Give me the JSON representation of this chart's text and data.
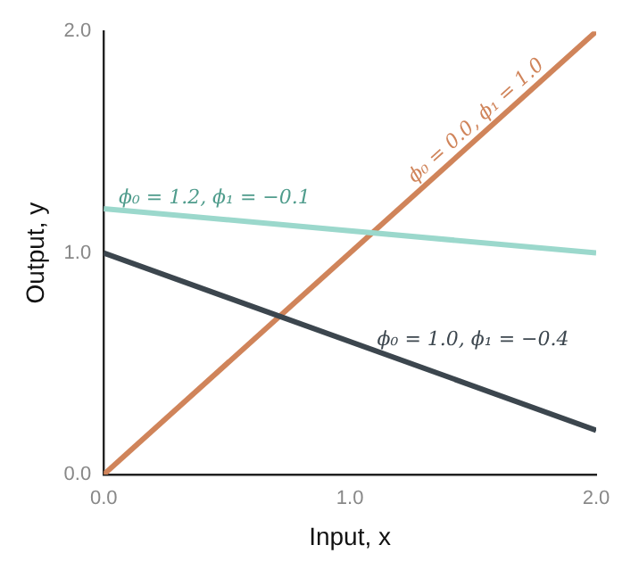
{
  "chart_data": {
    "type": "line",
    "xlabel": "Input, x",
    "ylabel": "Output, y",
    "xlim": [
      0,
      2
    ],
    "ylim": [
      0,
      2
    ],
    "xticks": [
      {
        "value": 0,
        "label": "0.0"
      },
      {
        "value": 1,
        "label": "1.0"
      },
      {
        "value": 2,
        "label": "2.0"
      }
    ],
    "yticks": [
      {
        "value": 0,
        "label": "0.0"
      },
      {
        "value": 1,
        "label": "1.0"
      },
      {
        "value": 2,
        "label": "2.0"
      }
    ],
    "x": [
      0,
      2
    ],
    "grid": false,
    "legend": false,
    "marker": "none",
    "line_style": "solid",
    "series": [
      {
        "name": "ϕ₀ = 1.2, ϕ₁ = −0.1",
        "color": "#9bd8cc",
        "values": [
          1.2,
          1.0
        ]
      },
      {
        "name": "ϕ₀ = 1.0, ϕ₁ = −0.4",
        "color": "#3c464e",
        "values": [
          1.0,
          0.2
        ]
      },
      {
        "name": "ϕ₀ = 0.0, ϕ₁ = 1.0",
        "color": "#d0845a",
        "values": [
          0.0,
          2.0
        ]
      }
    ]
  }
}
